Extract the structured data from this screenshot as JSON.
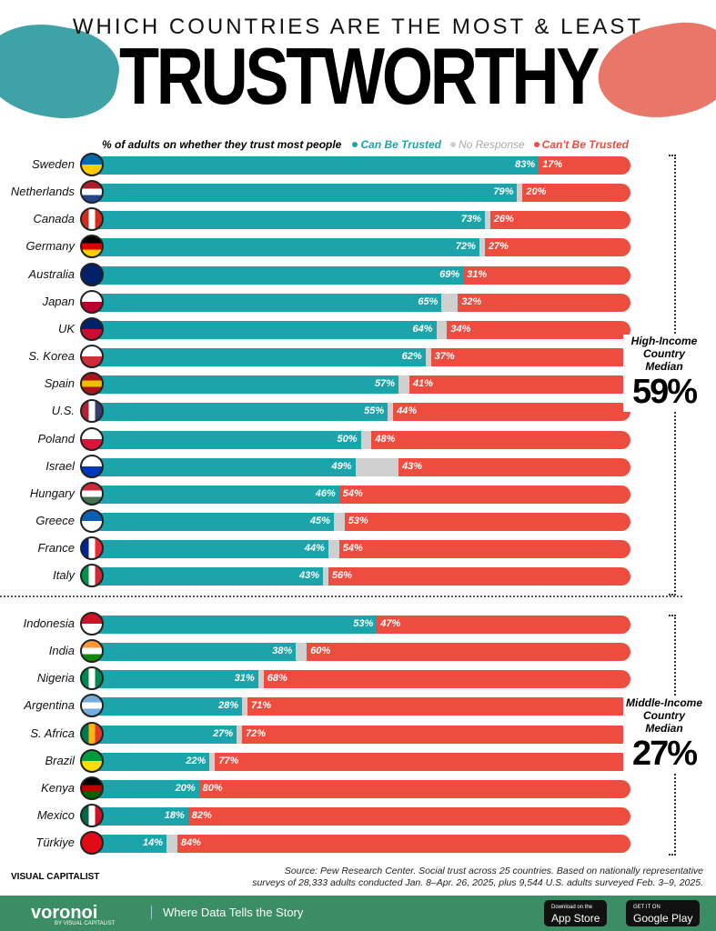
{
  "header": {
    "supertitle": "WHICH COUNTRIES ARE THE MOST & LEAST",
    "title": "TRUSTWORTHY"
  },
  "chart_data": {
    "type": "bar",
    "stacked": true,
    "orientation": "horizontal",
    "subtitle": "% of adults on whether they trust most people",
    "legend": [
      {
        "name": "Can Be Trusted",
        "color": "#1ba5aa"
      },
      {
        "name": "No Response",
        "color": "#cfcfcf"
      },
      {
        "name": "Can't Be Trusted",
        "color": "#ee4c3e"
      }
    ],
    "groups": [
      {
        "median_label": "High-Income Country Median",
        "median_value": "59%",
        "countries": [
          {
            "name": "Sweden",
            "trusted": 83,
            "not_trusted": 17,
            "flag": [
              "#006aa7",
              "#fecc00"
            ]
          },
          {
            "name": "Netherlands",
            "trusted": 79,
            "not_trusted": 20,
            "flag": [
              "#ae1c28",
              "#ffffff",
              "#21468b"
            ]
          },
          {
            "name": "Canada",
            "trusted": 73,
            "not_trusted": 26,
            "flag": [
              "#d52b1e",
              "#ffffff",
              "#d52b1e"
            ]
          },
          {
            "name": "Germany",
            "trusted": 72,
            "not_trusted": 27,
            "flag": [
              "#000000",
              "#dd0000",
              "#ffce00"
            ]
          },
          {
            "name": "Australia",
            "trusted": 69,
            "not_trusted": 31,
            "flag": [
              "#012169",
              "#012169"
            ]
          },
          {
            "name": "Japan",
            "trusted": 65,
            "not_trusted": 32,
            "flag": [
              "#ffffff",
              "#bc002d"
            ]
          },
          {
            "name": "UK",
            "trusted": 64,
            "not_trusted": 34,
            "flag": [
              "#012169",
              "#c8102e"
            ]
          },
          {
            "name": "S. Korea",
            "trusted": 62,
            "not_trusted": 37,
            "flag": [
              "#ffffff",
              "#cd2e3a"
            ]
          },
          {
            "name": "Spain",
            "trusted": 57,
            "not_trusted": 41,
            "flag": [
              "#aa151b",
              "#f1bf00",
              "#aa151b"
            ]
          },
          {
            "name": "U.S.",
            "trusted": 55,
            "not_trusted": 44,
            "flag": [
              "#b22234",
              "#ffffff",
              "#3c3b6e"
            ]
          },
          {
            "name": "Poland",
            "trusted": 50,
            "not_trusted": 48,
            "flag": [
              "#ffffff",
              "#dc143c"
            ]
          },
          {
            "name": "Israel",
            "trusted": 49,
            "not_trusted": 43,
            "flag": [
              "#ffffff",
              "#0038b8"
            ]
          },
          {
            "name": "Hungary",
            "trusted": 46,
            "not_trusted": 54,
            "flag": [
              "#ce2939",
              "#ffffff",
              "#477050"
            ]
          },
          {
            "name": "Greece",
            "trusted": 45,
            "not_trusted": 53,
            "flag": [
              "#0d5eaf",
              "#ffffff"
            ]
          },
          {
            "name": "France",
            "trusted": 44,
            "not_trusted": 54,
            "flag": [
              "#002395",
              "#ffffff",
              "#ed2939"
            ]
          },
          {
            "name": "Italy",
            "trusted": 43,
            "not_trusted": 56,
            "flag": [
              "#009246",
              "#ffffff",
              "#ce2b37"
            ]
          }
        ]
      },
      {
        "median_label": "Middle-Income Country Median",
        "median_value": "27%",
        "countries": [
          {
            "name": "Indonesia",
            "trusted": 53,
            "not_trusted": 47,
            "flag": [
              "#ce1126",
              "#ffffff"
            ]
          },
          {
            "name": "India",
            "trusted": 38,
            "not_trusted": 60,
            "flag": [
              "#ff9933",
              "#ffffff",
              "#138808"
            ]
          },
          {
            "name": "Nigeria",
            "trusted": 31,
            "not_trusted": 68,
            "flag": [
              "#008751",
              "#ffffff",
              "#008751"
            ]
          },
          {
            "name": "Argentina",
            "trusted": 28,
            "not_trusted": 71,
            "flag": [
              "#74acdf",
              "#ffffff",
              "#74acdf"
            ]
          },
          {
            "name": "S. Africa",
            "trusted": 27,
            "not_trusted": 72,
            "flag": [
              "#007a4d",
              "#ffb612",
              "#de3831"
            ]
          },
          {
            "name": "Brazil",
            "trusted": 22,
            "not_trusted": 77,
            "flag": [
              "#009c3b",
              "#ffdf00"
            ]
          },
          {
            "name": "Kenya",
            "trusted": 20,
            "not_trusted": 80,
            "flag": [
              "#000000",
              "#bb0000",
              "#006600"
            ]
          },
          {
            "name": "Mexico",
            "trusted": 18,
            "not_trusted": 82,
            "flag": [
              "#006847",
              "#ffffff",
              "#ce1126"
            ]
          },
          {
            "name": "Türkiye",
            "trusted": 14,
            "not_trusted": 84,
            "flag": [
              "#e30a17",
              "#e30a17"
            ]
          }
        ]
      }
    ],
    "value_suffix": "%",
    "xlim": [
      0,
      100
    ]
  },
  "source": {
    "line1": "Source: Pew Research Center. Social trust across 25 countries. Based on nationally representative",
    "line2": "surveys of 28,333 adults conducted Jan. 8–Apr. 26, 2025, plus 9,544 U.S. adults surveyed Feb. 3–9, 2025."
  },
  "brand": {
    "name": "VISUAL CAPITALIST"
  },
  "footer": {
    "logo": "voronoi",
    "by": "BY VISUAL CAPITALIST",
    "tagline": "Where Data Tells the Story",
    "app_store_small": "Download on the",
    "app_store": "App Store",
    "google_small": "GET IT ON",
    "google": "Google Play"
  }
}
